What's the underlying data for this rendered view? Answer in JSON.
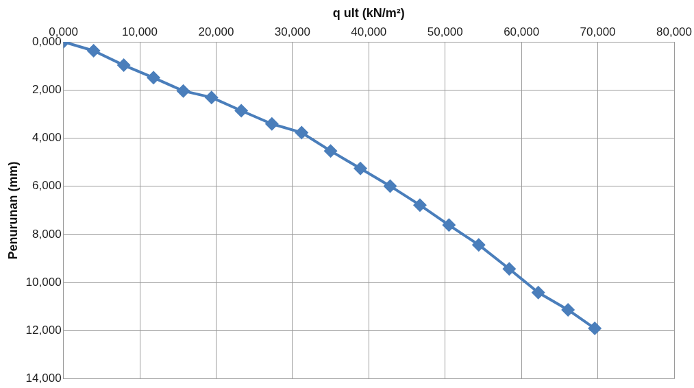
{
  "chart_data": {
    "type": "line",
    "xlabel": "q ult (kN/m²)",
    "ylabel": "Penurunan (mm)",
    "xlim": [
      0,
      80
    ],
    "xticks": [
      {
        "value": 0,
        "label": "0,000"
      },
      {
        "value": 10,
        "label": "10,000"
      },
      {
        "value": 20,
        "label": "20,000"
      },
      {
        "value": 30,
        "label": "30,000"
      },
      {
        "value": 40,
        "label": "40,000"
      },
      {
        "value": 50,
        "label": "50,000"
      },
      {
        "value": 60,
        "label": "60,000"
      },
      {
        "value": 70,
        "label": "70,000"
      },
      {
        "value": 80,
        "label": "80,000"
      }
    ],
    "ylim": [
      14,
      0
    ],
    "yticks": [
      {
        "value": 0,
        "label": "0,000"
      },
      {
        "value": 2,
        "label": "2,000"
      },
      {
        "value": 4,
        "label": "4,000"
      },
      {
        "value": 6,
        "label": "6,000"
      },
      {
        "value": 8,
        "label": "8,000"
      },
      {
        "value": 10,
        "label": "10,000"
      },
      {
        "value": 12,
        "label": "12,000"
      },
      {
        "value": 14,
        "label": "14,000"
      }
    ],
    "grid": true,
    "marker": "diamond",
    "line_style": "solid",
    "series": [
      {
        "color": "#4a7ebb",
        "x": [
          0,
          3.95,
          7.9,
          11.8,
          15.7,
          19.4,
          23.3,
          27.3,
          31.2,
          35.0,
          38.9,
          42.8,
          46.7,
          50.5,
          54.4,
          58.4,
          62.2,
          66.1,
          69.6
        ],
        "values": [
          0,
          0.37,
          0.97,
          1.49,
          2.04,
          2.31,
          2.86,
          3.41,
          3.77,
          4.53,
          5.26,
          5.99,
          6.78,
          7.61,
          8.43,
          9.43,
          10.41,
          11.13,
          11.9
        ]
      }
    ]
  }
}
